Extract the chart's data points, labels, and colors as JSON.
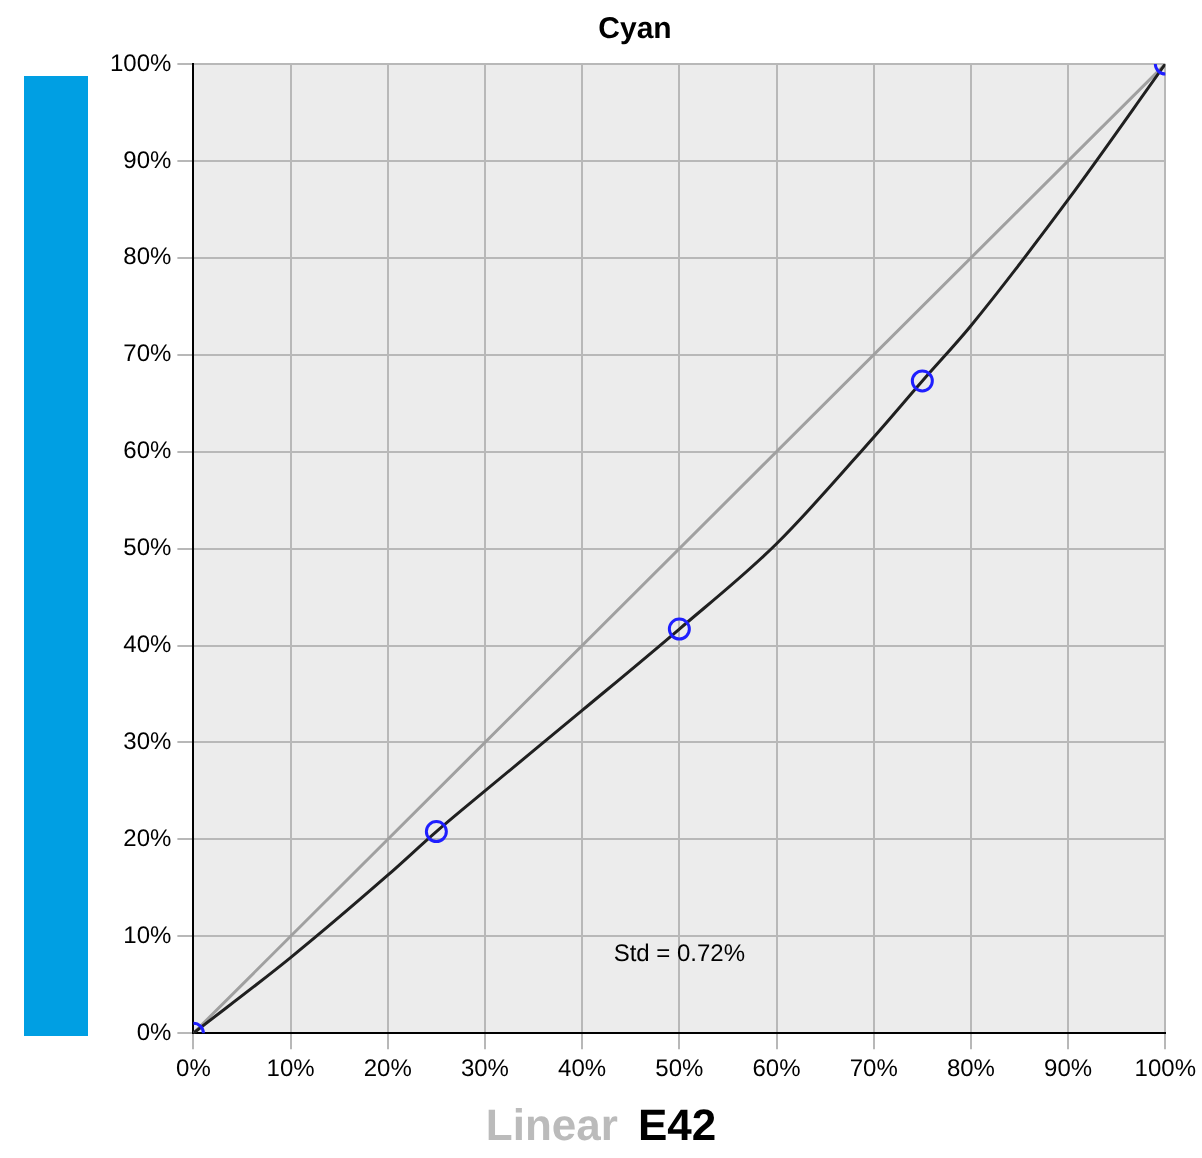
{
  "chart_data": {
    "type": "line",
    "title": "Cyan",
    "x": [
      0,
      10,
      20,
      25,
      30,
      40,
      50,
      60,
      70,
      75,
      80,
      90,
      100
    ],
    "series": [
      {
        "color": "#a0a0a0",
        "x": [
          0,
          100
        ],
        "values": [
          0,
          100
        ],
        "marker": "none"
      },
      {
        "color": "#202020",
        "values": [
          0,
          7.8,
          16.3,
          20.8,
          25,
          33.3,
          41.7,
          50.5,
          61.5,
          67.3,
          73,
          86,
          100
        ],
        "marker": "none"
      },
      {
        "type": "scatter",
        "color": "#1f1fff",
        "x": [
          0,
          25,
          50,
          75,
          100
        ],
        "values": [
          0,
          20.8,
          41.7,
          67.3,
          100
        ],
        "marker": "circle"
      }
    ],
    "xlim": [
      0,
      100
    ],
    "ylim": [
      0,
      100
    ],
    "xticks": [
      {
        "value": 0,
        "label": "0%"
      },
      {
        "value": 10,
        "label": "10%"
      },
      {
        "value": 20,
        "label": "20%"
      },
      {
        "value": 30,
        "label": "30%"
      },
      {
        "value": 40,
        "label": "40%"
      },
      {
        "value": 50,
        "label": "50%"
      },
      {
        "value": 60,
        "label": "60%"
      },
      {
        "value": 70,
        "label": "70%"
      },
      {
        "value": 80,
        "label": "80%"
      },
      {
        "value": 90,
        "label": "90%"
      },
      {
        "value": 100,
        "label": "100%"
      }
    ],
    "yticks": [
      {
        "value": 0,
        "label": "0%"
      },
      {
        "value": 10,
        "label": "10%"
      },
      {
        "value": 20,
        "label": "20%"
      },
      {
        "value": 30,
        "label": "30%"
      },
      {
        "value": 40,
        "label": "40%"
      },
      {
        "value": 50,
        "label": "50%"
      },
      {
        "value": 60,
        "label": "60%"
      },
      {
        "value": 70,
        "label": "70%"
      },
      {
        "value": 80,
        "label": "80%"
      },
      {
        "value": 90,
        "label": "90%"
      },
      {
        "value": 100,
        "label": "100%"
      }
    ],
    "grid": true,
    "legend": false,
    "annotations": [
      "Std = 0.72%",
      "Linear",
      "E42"
    ]
  }
}
